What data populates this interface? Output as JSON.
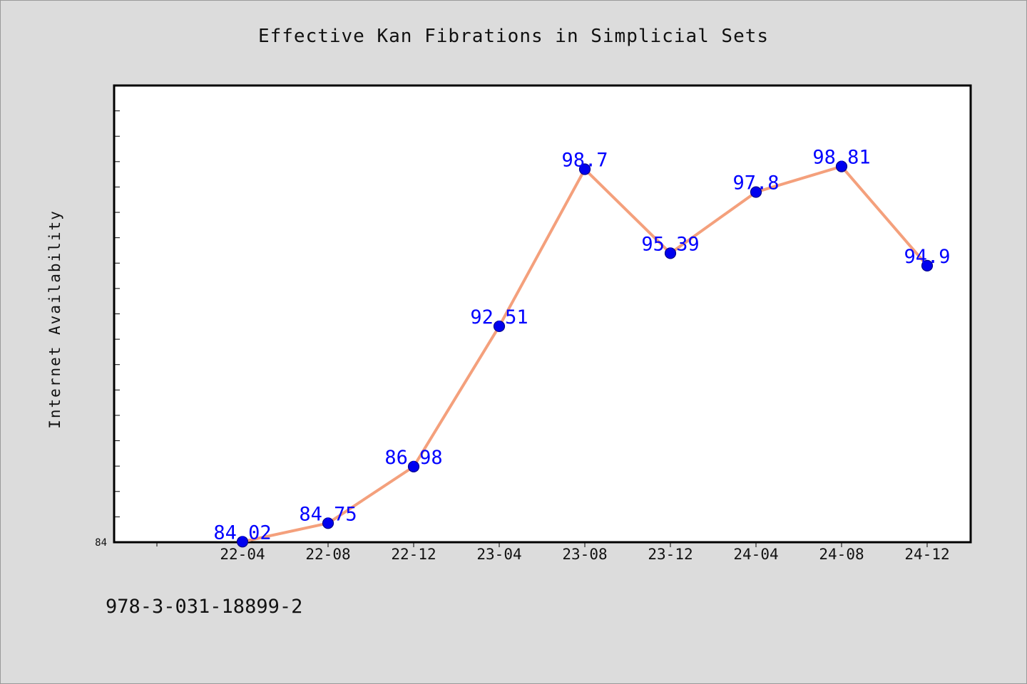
{
  "chart_data": {
    "type": "line",
    "title": "Effective Kan Fibrations in Simplicial Sets",
    "xlabel": "",
    "ylabel": "Internet Availability",
    "categories": [
      "22-04",
      "22-08",
      "22-12",
      "23-04",
      "23-08",
      "23-12",
      "24-04",
      "24-08",
      "24-12"
    ],
    "series": [
      {
        "values": [
          84.02,
          84.75,
          86.98,
          92.51,
          98.7,
          95.39,
          97.8,
          98.81,
          94.9
        ],
        "labels": [
          "84.02",
          "84.75",
          "86.98",
          "92.51",
          "98.7",
          "95.39",
          "97.8",
          "98.81",
          "94.9"
        ]
      }
    ],
    "ylim": [
      84,
      102
    ],
    "ytick_label": "84",
    "grid": false,
    "colors": {
      "line": "#f4a07c",
      "marker": "#0000ee",
      "marker_edge": "#00008b",
      "label": "#0000ff"
    }
  },
  "caption": "978-3-031-18899-2"
}
